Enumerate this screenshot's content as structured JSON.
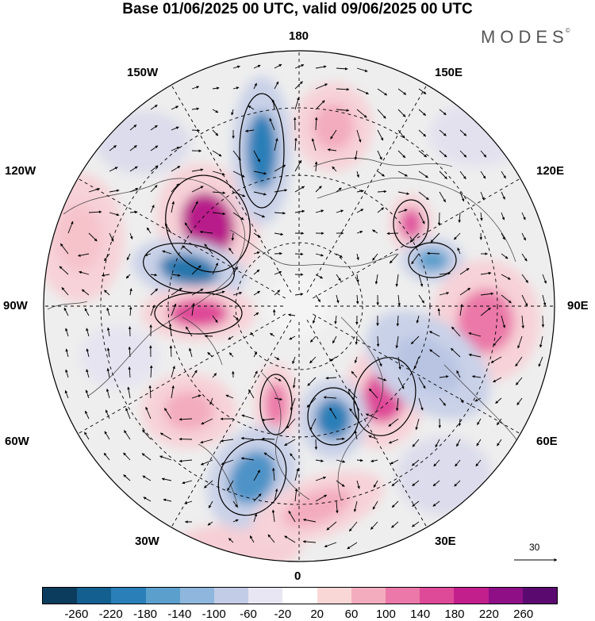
{
  "title": "Base 01/06/2025 00 UTC, valid 09/06/2025 00 UTC",
  "brand": "MODES",
  "brand_mark": "©",
  "longitude_labels": {
    "n180": "180",
    "w150": "150W",
    "e150": "150E",
    "w120": "120W",
    "e120": "120E",
    "w90": "90W",
    "e90": "90E",
    "w60": "60W",
    "e60": "60E",
    "w30": "30W",
    "e30": "30E",
    "s0": "0"
  },
  "reference_vector": {
    "label": "30",
    "icon": "arrow-right-icon"
  },
  "colorbar": {
    "ticks": [
      "-260",
      "-220",
      "-180",
      "-140",
      "-100",
      "-60",
      "-20",
      "20",
      "60",
      "100",
      "140",
      "180",
      "220",
      "260"
    ],
    "colors": [
      "#0b3c5d",
      "#135f8f",
      "#2b7fb8",
      "#5b9fcc",
      "#8fb6dc",
      "#c2cce6",
      "#e7e6f2",
      "#ffffff",
      "#f9d7d7",
      "#f3acbe",
      "#eb78a8",
      "#df4a98",
      "#c21f8d",
      "#8e0f86",
      "#5a0a6e"
    ]
  },
  "anomaly_centers": [
    {
      "name": "ridge-150w",
      "value": 230,
      "shade": "#b81f8a"
    },
    {
      "name": "trough-170w",
      "value": -170,
      "shade": "#2b7fb8"
    },
    {
      "name": "trough-110w",
      "value": -190,
      "shade": "#2677ad"
    },
    {
      "name": "ridge-95w",
      "value": 140,
      "shade": "#df4a98"
    },
    {
      "name": "ridge-165e",
      "value": 60,
      "shade": "#f3acbe"
    },
    {
      "name": "ridge-125e",
      "value": 150,
      "shade": "#e0559f"
    },
    {
      "name": "trough-110e",
      "value": -130,
      "shade": "#5b9fcc"
    },
    {
      "name": "ridge-90e",
      "value": 110,
      "shade": "#eb78a8"
    },
    {
      "name": "ridge-50e",
      "value": 150,
      "shade": "#df4a98"
    },
    {
      "name": "trough-25e",
      "value": -170,
      "shade": "#2b7fb8"
    },
    {
      "name": "trough-65e",
      "value": -60,
      "shade": "#b8c4e2"
    },
    {
      "name": "ridge-10w",
      "value": 100,
      "shade": "#eb78a8"
    },
    {
      "name": "trough-30w",
      "value": -150,
      "shade": "#4d93c7"
    },
    {
      "name": "ridge-50w",
      "value": 80,
      "shade": "#f3acbe"
    },
    {
      "name": "ridge-10e",
      "value": 60,
      "shade": "#f3acbe"
    },
    {
      "name": "ridge-100w",
      "value": 60,
      "shade": "#f6c3cb"
    }
  ]
}
